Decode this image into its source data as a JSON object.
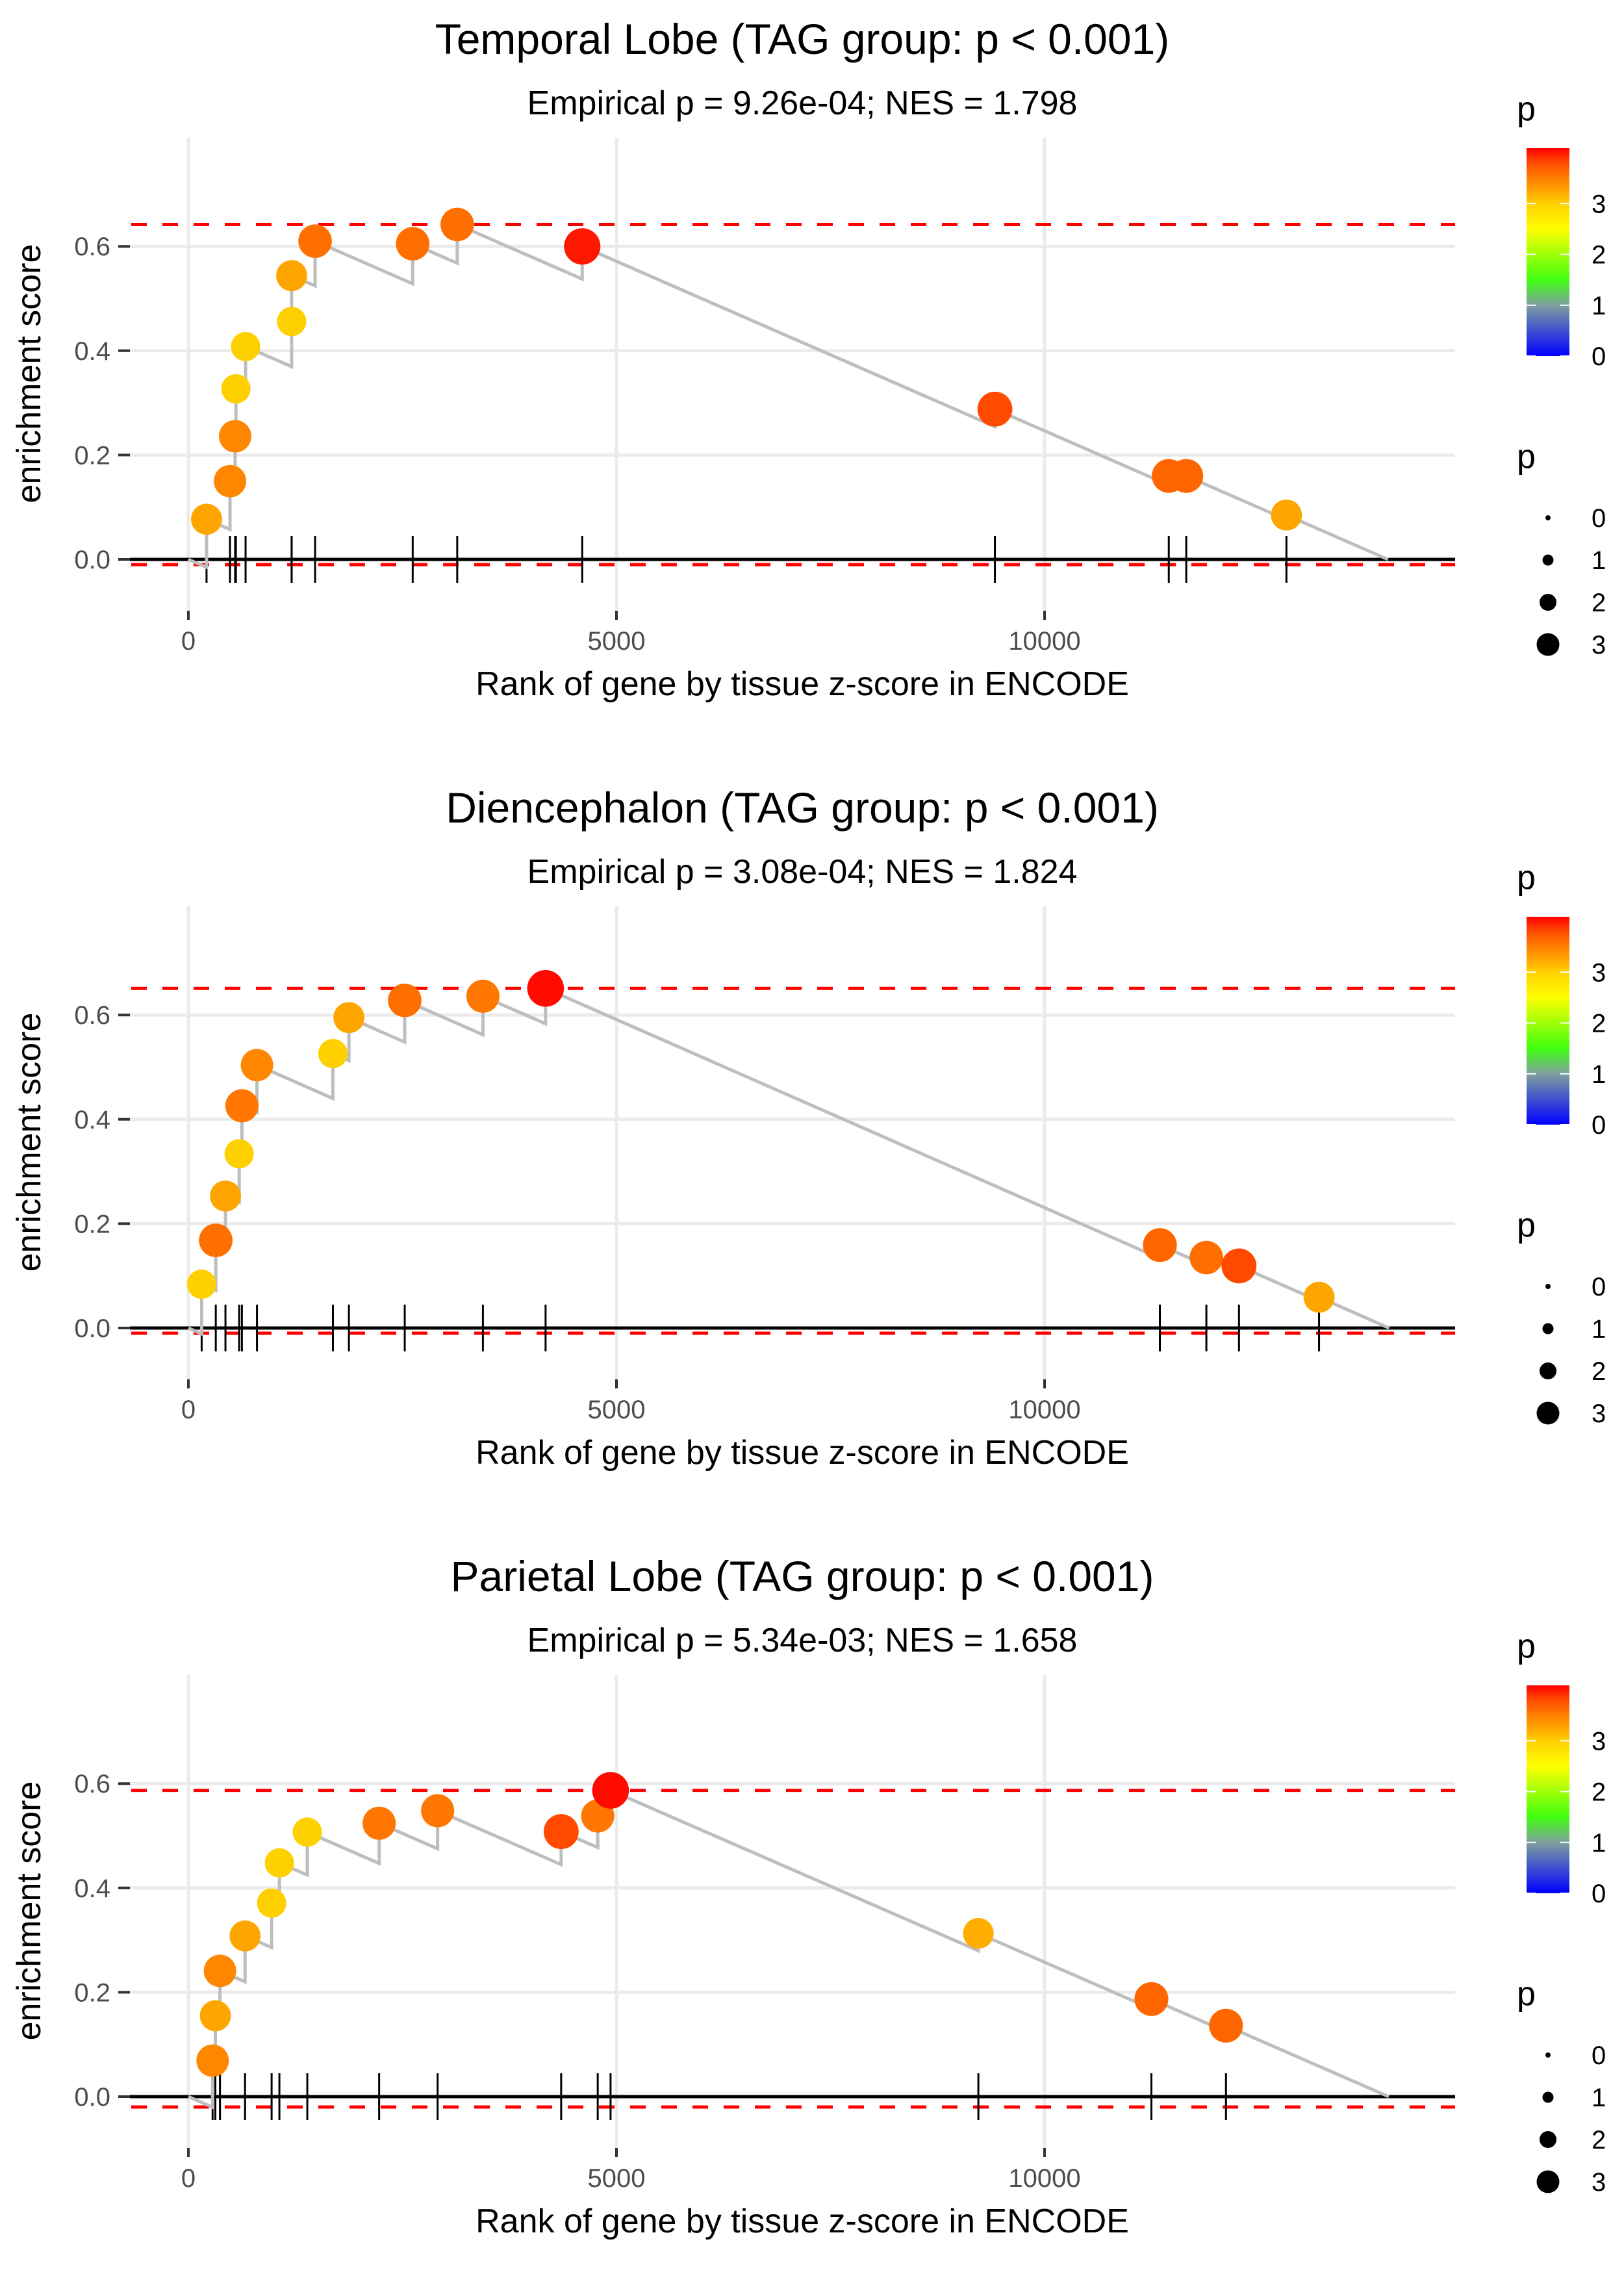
{
  "chart_data": [
    {
      "type": "line",
      "title": "Temporal Lobe (TAG group: p < 0.001)",
      "subtitle": "Empirical p = 9.26e-04; NES = 1.798",
      "xlabel": "Rank of gene by tissue z-score in ENCODE",
      "ylabel": "enrichment score",
      "xlim": [
        -800,
        14800
      ],
      "ylim": [
        -0.035,
        0.69
      ],
      "x_ticks": [
        0,
        5000,
        10000
      ],
      "x_tick_labels": [
        "0",
        "5000",
        "10000"
      ],
      "y_ticks": [
        0.0,
        0.2,
        0.4,
        0.6
      ],
      "y_tick_labels": [
        "0.0",
        "0.2",
        "0.4",
        "0.6"
      ],
      "grid": true,
      "total_genes": 14011,
      "max_es": 0.642,
      "min_es": -0.01,
      "hits": [
        {
          "rank": 212,
          "es": 0.077,
          "p": 3.25
        },
        {
          "rank": 486,
          "es": 0.15,
          "p": 3.45
        },
        {
          "rank": 546,
          "es": 0.236,
          "p": 3.45
        },
        {
          "rank": 555,
          "es": 0.327,
          "p": 3.0
        },
        {
          "rank": 668,
          "es": 0.408,
          "p": 3.0
        },
        {
          "rank": 1206,
          "es": 0.456,
          "p": 3.0
        },
        {
          "rank": 1206,
          "es": 0.544,
          "p": 3.25
        },
        {
          "rank": 1480,
          "es": 0.61,
          "p": 3.6
        },
        {
          "rank": 2620,
          "es": 0.605,
          "p": 3.6
        },
        {
          "rank": 3140,
          "es": 0.642,
          "p": 3.6
        },
        {
          "rank": 4600,
          "es": 0.6,
          "p": 4.0
        },
        {
          "rank": 9420,
          "es": 0.288,
          "p": 3.8
        },
        {
          "rank": 11451,
          "es": 0.16,
          "p": 3.65
        },
        {
          "rank": 11655,
          "es": 0.16,
          "p": 3.65
        },
        {
          "rank": 12825,
          "es": 0.085,
          "p": 3.25
        }
      ],
      "legend_color": {
        "title": "p",
        "ticks": [
          "0",
          "1",
          "2",
          "3"
        ],
        "range": [
          0,
          4.09
        ],
        "position": "right-top"
      },
      "legend_size": {
        "title": "p",
        "labels": [
          "0",
          "1",
          "2",
          "3"
        ],
        "position": "right-bottom"
      }
    },
    {
      "type": "line",
      "title": "Diencephalon (TAG group: p < 0.001)",
      "subtitle": "Empirical p = 3.08e-04; NES = 1.824",
      "xlabel": "Rank of gene by tissue z-score in ENCODE",
      "ylabel": "enrichment score",
      "xlim": [
        -800,
        14800
      ],
      "ylim": [
        -0.035,
        0.69
      ],
      "x_ticks": [
        0,
        5000,
        10000
      ],
      "x_tick_labels": [
        "0",
        "5000",
        "10000"
      ],
      "y_ticks": [
        0.0,
        0.2,
        0.4,
        0.6
      ],
      "y_tick_labels": [
        "0.0",
        "0.2",
        "0.4",
        "0.6"
      ],
      "grid": true,
      "total_genes": 14024,
      "max_es": 0.651,
      "min_es": -0.01,
      "hits": [
        {
          "rank": 155,
          "es": 0.084,
          "p": 3.0
        },
        {
          "rank": 320,
          "es": 0.168,
          "p": 3.6
        },
        {
          "rank": 433,
          "es": 0.253,
          "p": 3.25
        },
        {
          "rank": 593,
          "es": 0.334,
          "p": 3.0
        },
        {
          "rank": 625,
          "es": 0.426,
          "p": 3.55
        },
        {
          "rank": 801,
          "es": 0.504,
          "p": 3.45
        },
        {
          "rank": 1688,
          "es": 0.526,
          "p": 3.0
        },
        {
          "rank": 1875,
          "es": 0.595,
          "p": 3.25
        },
        {
          "rank": 2527,
          "es": 0.628,
          "p": 3.6
        },
        {
          "rank": 3440,
          "es": 0.636,
          "p": 3.55
        },
        {
          "rank": 4172,
          "es": 0.651,
          "p": 4.05
        },
        {
          "rank": 11347,
          "es": 0.159,
          "p": 3.65
        },
        {
          "rank": 11890,
          "es": 0.135,
          "p": 3.6
        },
        {
          "rank": 12271,
          "es": 0.119,
          "p": 3.8
        },
        {
          "rank": 13206,
          "es": 0.059,
          "p": 3.25
        }
      ],
      "legend_color": {
        "title": "p",
        "ticks": [
          "0",
          "1",
          "2",
          "3"
        ],
        "range": [
          0,
          4.09
        ],
        "position": "right-top"
      },
      "legend_size": {
        "title": "p",
        "labels": [
          "0",
          "1",
          "2",
          "3"
        ],
        "position": "right-bottom"
      }
    },
    {
      "type": "line",
      "title": "Parietal Lobe (TAG group: p < 0.001)",
      "subtitle": "Empirical p = 5.34e-03; NES = 1.658",
      "xlabel": "Rank of gene by tissue z-score in ENCODE",
      "ylabel": "enrichment score",
      "xlim": [
        -800,
        14800
      ],
      "ylim": [
        -0.035,
        0.625
      ],
      "x_ticks": [
        0,
        5000,
        10000
      ],
      "x_tick_labels": [
        "0",
        "5000",
        "10000"
      ],
      "y_ticks": [
        0.0,
        0.2,
        0.4,
        0.6
      ],
      "y_tick_labels": [
        "0.0",
        "0.2",
        "0.4",
        "0.6"
      ],
      "grid": true,
      "total_genes": 14020,
      "max_es": 0.587,
      "min_es": -0.02,
      "hits": [
        {
          "rank": 283,
          "es": 0.069,
          "p": 3.45
        },
        {
          "rank": 315,
          "es": 0.155,
          "p": 3.25
        },
        {
          "rank": 369,
          "es": 0.241,
          "p": 3.45
        },
        {
          "rank": 662,
          "es": 0.308,
          "p": 3.25
        },
        {
          "rank": 972,
          "es": 0.371,
          "p": 3.0
        },
        {
          "rank": 1063,
          "es": 0.448,
          "p": 3.0
        },
        {
          "rank": 1389,
          "es": 0.507,
          "p": 3.0
        },
        {
          "rank": 2228,
          "es": 0.524,
          "p": 3.55
        },
        {
          "rank": 2911,
          "es": 0.548,
          "p": 3.55
        },
        {
          "rank": 4354,
          "es": 0.508,
          "p": 3.8
        },
        {
          "rank": 4781,
          "es": 0.538,
          "p": 3.55
        },
        {
          "rank": 4931,
          "es": 0.587,
          "p": 4.05
        },
        {
          "rank": 9227,
          "es": 0.313,
          "p": 3.2
        },
        {
          "rank": 11248,
          "es": 0.187,
          "p": 3.65
        },
        {
          "rank": 12119,
          "es": 0.136,
          "p": 3.65
        }
      ],
      "legend_color": {
        "title": "p",
        "ticks": [
          "0",
          "1",
          "2",
          "3"
        ],
        "range": [
          0,
          4.09
        ],
        "position": "right-top"
      },
      "legend_size": {
        "title": "p",
        "labels": [
          "0",
          "1",
          "2",
          "3"
        ],
        "position": "right-bottom"
      }
    }
  ],
  "colors": {
    "dashed_line": "#ff0000",
    "running_es_line": "#bebebe",
    "zero_line": "#000000",
    "gridline": "#ebebeb",
    "hit_tick": "#000000",
    "colorscale": [
      "#0000ff",
      "#7f7fbf",
      "#7fbf7f",
      "#40ff00",
      "#ffff00",
      "#ffa500",
      "#ff0000"
    ]
  }
}
